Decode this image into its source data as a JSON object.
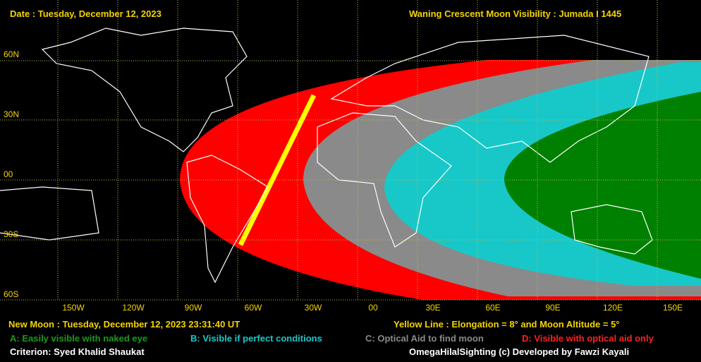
{
  "header": {
    "date": "Date : Tuesday, December 12, 2023",
    "title": "Waning Crescent Moon Visibility : Jumada I 1445"
  },
  "map": {
    "latitude_labels": [
      "60N",
      "30N",
      "00",
      "30S",
      "60S"
    ],
    "longitude_labels": [
      "150W",
      "120W",
      "90W",
      "60W",
      "30W",
      "00",
      "30E",
      "60E",
      "90E",
      "120E",
      "150E"
    ]
  },
  "footer": {
    "new_moon": "New Moon : Tuesday, December 12, 2023  23:31:40  UT",
    "yellow_line": "Yellow Line : Elongation = 8° and Moon Altitude = 5°",
    "legend": [
      "A: Easily visible with naked eye",
      "B: Visible if perfect conditions",
      "C: Optical Aid to find moon",
      "D: Visible with optical aid only"
    ],
    "criterion": "Criterion: Syed Khalid Shaukat",
    "credit": "OmegaHilalSighting  (c)  Developed by Fawzi Kayali"
  }
}
